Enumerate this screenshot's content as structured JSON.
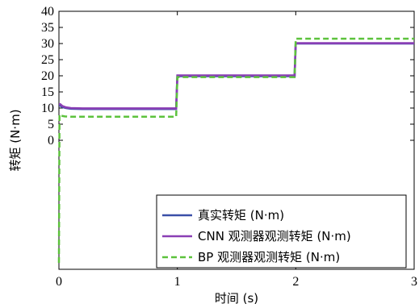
{
  "chart_data": {
    "type": "line",
    "xlabel": "时间 (s)",
    "ylabel": "转矩 (N·m)",
    "xlim": [
      0,
      3
    ],
    "ylim": [
      -40,
      40
    ],
    "x_ticks": [
      "0",
      "1",
      "2",
      "3"
    ],
    "y_ticks": [
      "0",
      "5",
      "10",
      "15",
      "20",
      "25",
      "30",
      "35",
      "40"
    ],
    "grid": false,
    "legend_position": "bottom-right",
    "series": [
      {
        "name": "真实转矩 (N·m)",
        "color": "#3a4fa8",
        "style": "solid",
        "x": [
          0,
          0.01,
          0.03,
          0.06,
          0.1,
          0.2,
          0.99,
          1.0,
          1.01,
          1.99,
          2.0,
          2.01,
          3.0
        ],
        "y": [
          10.8,
          10.8,
          10.3,
          10.0,
          9.8,
          9.7,
          9.7,
          19.9,
          19.9,
          19.9,
          30.0,
          30.0,
          30.0
        ]
      },
      {
        "name": "CNN 观测器观测转矩 (N·m)",
        "color": "#8a3fb5",
        "style": "solid",
        "x": [
          0,
          0.01,
          0.03,
          0.06,
          0.1,
          0.2,
          0.99,
          1.0,
          1.01,
          1.99,
          2.0,
          2.01,
          3.0
        ],
        "y": [
          11.2,
          11.2,
          10.6,
          10.2,
          10.0,
          9.9,
          9.9,
          20.1,
          20.1,
          20.1,
          30.1,
          30.1,
          30.1
        ]
      },
      {
        "name": "BP 观测器观测转矩 (N·m)",
        "color": "#5cc23c",
        "style": "dashed",
        "x": [
          0,
          0.005,
          0.02,
          0.05,
          0.1,
          0.2,
          0.99,
          1.0,
          1.01,
          1.99,
          2.0,
          2.01,
          3.0
        ],
        "y": [
          -38,
          8.0,
          7.6,
          7.4,
          7.3,
          7.3,
          7.3,
          19.6,
          19.6,
          19.6,
          31.5,
          31.5,
          31.5
        ]
      }
    ]
  }
}
